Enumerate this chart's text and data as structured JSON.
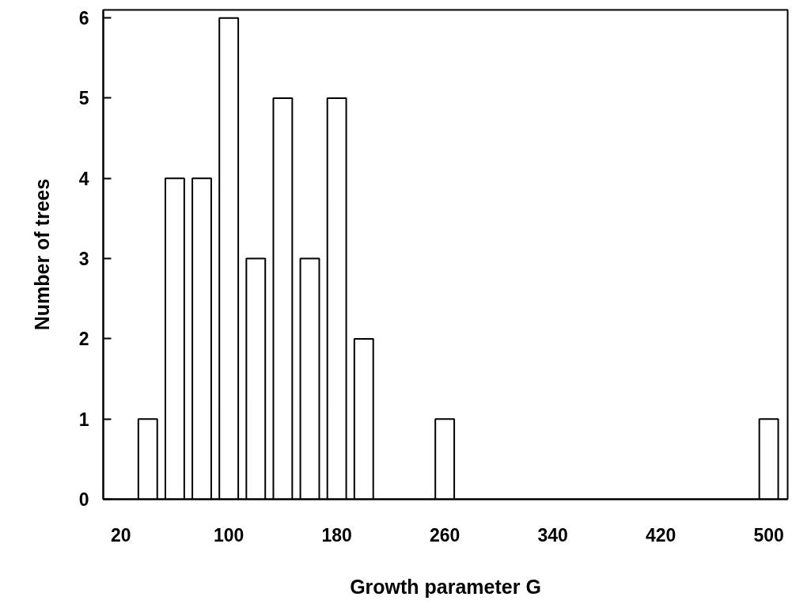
{
  "chart_data": {
    "type": "bar",
    "xlabel": "Growth parameter G",
    "ylabel": "Number of trees",
    "x": [
      40,
      60,
      80,
      100,
      120,
      140,
      160,
      180,
      200,
      260,
      500
    ],
    "values": [
      1,
      4,
      4,
      6,
      3,
      5,
      3,
      5,
      2,
      1,
      1
    ],
    "color": "#ffffff",
    "xlim": [
      7,
      514
    ],
    "xticks": [
      20,
      100,
      180,
      260,
      340,
      420,
      500
    ],
    "ylim": [
      0,
      6.1
    ],
    "yticks": [
      0,
      1,
      2,
      3,
      4,
      5,
      6
    ],
    "grid": false
  }
}
